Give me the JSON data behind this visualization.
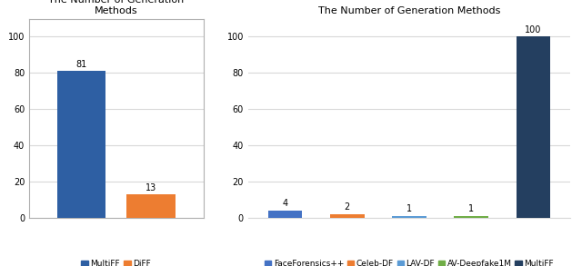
{
  "chart1": {
    "title": "The Number of Generation\nMethods",
    "categories": [
      "MultiFF",
      "DiFF"
    ],
    "values": [
      81,
      13
    ],
    "colors": [
      "#2e5fa3",
      "#ed7d31"
    ],
    "ylim": [
      0,
      110
    ],
    "yticks": [
      0,
      20,
      40,
      60,
      80,
      100
    ]
  },
  "chart2": {
    "title": "The Number of Generation Methods",
    "categories": [
      "FaceForensics++",
      "Celeb-DF",
      "LAV-DF",
      "AV-Deepfake1M",
      "MultiFF"
    ],
    "values": [
      4,
      2,
      1,
      1,
      100
    ],
    "colors": [
      "#4472c4",
      "#ed7d31",
      "#5b9bd5",
      "#70ad47",
      "#243f60"
    ],
    "ylim": [
      0,
      110
    ],
    "yticks": [
      0,
      20,
      40,
      60,
      80,
      100
    ]
  },
  "bg_color": "#ffffff",
  "grid_color": "#d9d9d9",
  "font_size": 7,
  "title_font_size": 8,
  "label_font_size": 6.5
}
